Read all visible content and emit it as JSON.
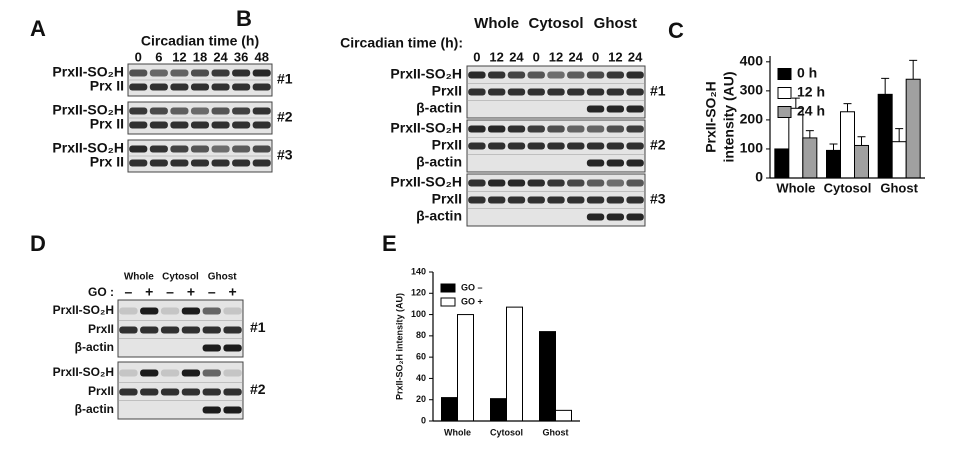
{
  "panel_A": {
    "label": "A",
    "header": "Circadian time (h)",
    "lanes": [
      "0",
      "6",
      "12",
      "18",
      "24",
      "36",
      "48"
    ],
    "blots": [
      {
        "rows": [
          "PrxII-SO₂H",
          "Prx II"
        ],
        "replicate": "#1"
      },
      {
        "rows": [
          "PrxII-SO₂H",
          "Prx II"
        ],
        "replicate": "#2"
      },
      {
        "rows": [
          "PrxII-SO₂H",
          "Prx II"
        ],
        "replicate": "#3"
      }
    ]
  },
  "panel_B": {
    "label": "B",
    "groups": [
      "Whole",
      "Cytosol",
      "Ghost"
    ],
    "header": "Circadian time (h):",
    "lanes": [
      "0",
      "12",
      "24",
      "0",
      "12",
      "24",
      "0",
      "12",
      "24"
    ],
    "blots": [
      {
        "rows": [
          "PrxII-SO₂H",
          "PrxII",
          "β-actin"
        ],
        "replicate": "#1"
      },
      {
        "rows": [
          "PrxII-SO₂H",
          "PrxII",
          "β-actin"
        ],
        "replicate": "#2"
      },
      {
        "rows": [
          "PrxII-SO₂H",
          "PrxII",
          "β-actin"
        ],
        "replicate": "#3"
      }
    ]
  },
  "panel_D": {
    "label": "D",
    "groups": [
      "Whole",
      "Cytosol",
      "Ghost"
    ],
    "treatment": "GO :",
    "lanes": [
      "–",
      "+",
      "–",
      "+",
      "–",
      "+"
    ],
    "blots": [
      {
        "rows": [
          "PrxII-SO₂H",
          "PrxII",
          "β-actin"
        ],
        "replicate": "#1"
      },
      {
        "rows": [
          "PrxII-SO₂H",
          "PrxII",
          "β-actin"
        ],
        "replicate": "#2"
      }
    ]
  },
  "chart_data": [
    {
      "panel_label": "C",
      "type": "bar",
      "y_label": [
        "PrxII-SO₂H",
        "intensity (AU)"
      ],
      "categories": [
        "Whole",
        "Cytosol",
        "Ghost"
      ],
      "series": [
        {
          "name": "0 h",
          "color": "#000000",
          "values": [
            100,
            95,
            288
          ],
          "errors": [
            null,
            22,
            55
          ]
        },
        {
          "name": "12 h",
          "color": "#ffffff",
          "values": [
            240,
            228,
            125
          ],
          "errors": [
            35,
            28,
            45
          ]
        },
        {
          "name": "24 h",
          "color": "#a0a0a0",
          "values": [
            138,
            112,
            340
          ],
          "errors": [
            25,
            30,
            65
          ]
        }
      ],
      "ylim": [
        0,
        420
      ],
      "yticks": [
        0,
        100,
        200,
        300,
        400
      ],
      "legend": "upper left"
    },
    {
      "panel_label": "E",
      "type": "bar",
      "y_label": [
        "PrxII-SO₂H intensity (AU)"
      ],
      "categories": [
        "Whole",
        "Cytosol",
        "Ghost"
      ],
      "series": [
        {
          "name": "GO –",
          "color": "#000000",
          "values": [
            22,
            21,
            84
          ]
        },
        {
          "name": "GO +",
          "color": "#ffffff",
          "values": [
            100,
            107,
            10
          ]
        }
      ],
      "ylim": [
        0,
        140
      ],
      "yticks": [
        0,
        20,
        40,
        60,
        80,
        100,
        120,
        140
      ],
      "legend": "upper left"
    }
  ]
}
